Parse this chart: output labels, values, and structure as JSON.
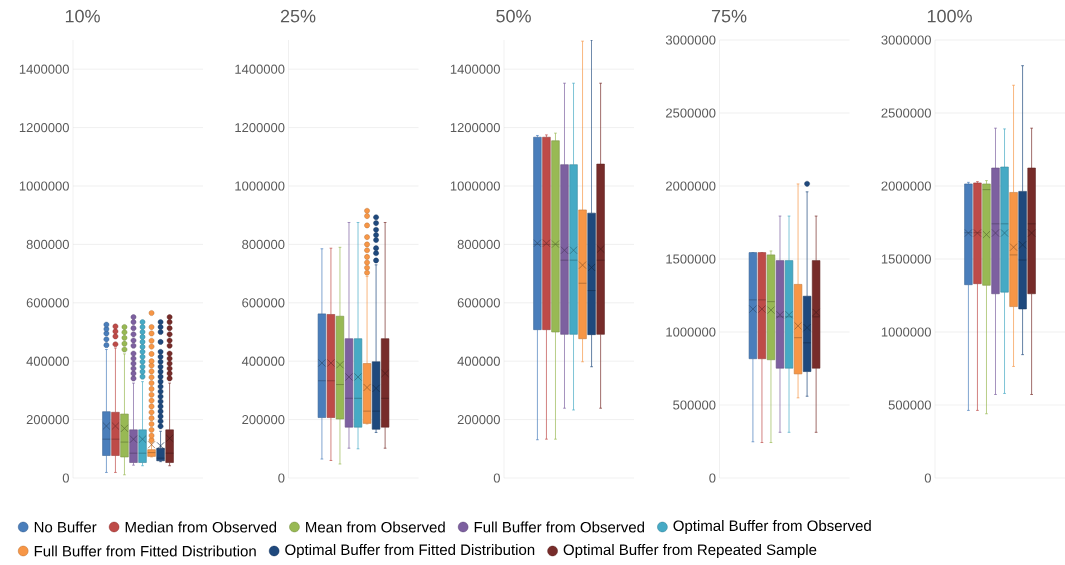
{
  "chart_data": [
    {
      "type": "box",
      "title": "10%",
      "categories": [
        null
      ],
      "ylim": [
        0,
        1500000
      ],
      "yticks": [
        0,
        200000,
        400000,
        600000,
        800000,
        1000000,
        1200000,
        1400000
      ],
      "grid": "y",
      "legend": "bottom",
      "series": [
        {
          "name": "No Buffer",
          "color": "#4a7ebb",
          "boxes": [
            {
              "low": 19000,
              "q1": 77000,
              "median": 133000,
              "q3": 227000,
              "high": 440000,
              "mean": 178000,
              "outliers": [
                455000,
                475000,
                495000,
                510000,
                525000
              ]
            }
          ]
        },
        {
          "name": "Median from Observed",
          "color": "#be4b48",
          "boxes": [
            {
              "low": 19000,
              "q1": 77000,
              "median": 133000,
              "q3": 225000,
              "high": 445000,
              "mean": 178000,
              "outliers": [
                458000,
                485000,
                502000,
                519000
              ]
            }
          ]
        },
        {
          "name": "Mean from Observed",
          "color": "#98b954",
          "boxes": [
            {
              "low": 11000,
              "q1": 72000,
              "median": 123000,
              "q3": 219000,
              "high": 425000,
              "mean": 170000,
              "outliers": [
                440000,
                460000,
                480000,
                499000,
                517000
              ]
            }
          ]
        },
        {
          "name": "Full Buffer from Observed",
          "color": "#7d60a0",
          "boxes": [
            {
              "low": 44000,
              "q1": 53000,
              "median": 85000,
              "q3": 165000,
              "high": 325000,
              "mean": 133000,
              "outliers": [
                341000,
                358000,
                375000,
                392000,
                409000,
                426000,
                453000,
                471000,
                492000,
                513000,
                534000,
                551000
              ]
            }
          ]
        },
        {
          "name": "Optimal Buffer from Observed",
          "color": "#46aac5",
          "boxes": [
            {
              "low": 42000,
              "q1": 53000,
              "median": 85000,
              "q3": 165000,
              "high": 330000,
              "mean": 133000,
              "outliers": [
                347000,
                364000,
                381000,
                398000,
                415000,
                432000,
                449000,
                466000,
                483000,
                500000,
                517000,
                534000
              ]
            }
          ]
        },
        {
          "name": "Full Buffer from Fitted Distribution",
          "color": "#f79646",
          "boxes": [
            {
              "low": 72000,
              "q1": 74000,
              "median": 87000,
              "q3": 97000,
              "high": 120000,
              "mean": 114000,
              "outliers": [
                130000,
                145000,
                165000,
                185000,
                205000,
                225000,
                245000,
                265000,
                285000,
                305000,
                325000,
                345000,
                365000,
                385000,
                400000,
                425000,
                450000,
                470000,
                495000,
                517000,
                565000
              ]
            }
          ]
        },
        {
          "name": "Optimal Buffer from Fitted Distribution",
          "color": "#1f497d",
          "boxes": [
            {
              "low": 56000,
              "q1": 59000,
              "median": 68000,
              "q3": 102000,
              "high": 160000,
              "mean": 110000,
              "outliers": [
                177000,
                194000,
                211000,
                228000,
                245000,
                262000,
                279000,
                296000,
                313000,
                330000,
                347000,
                364000,
                381000,
                398000,
                415000,
                432000,
                466000,
                500000,
                517000,
                534000
              ]
            }
          ]
        },
        {
          "name": "Optimal Buffer from Repeated Sample",
          "color": "#772c2a",
          "boxes": [
            {
              "low": 42000,
              "q1": 53000,
              "median": 85000,
              "q3": 165000,
              "high": 325000,
              "mean": 136000,
              "outliers": [
                341000,
                358000,
                375000,
                392000,
                409000,
                426000,
                453000,
                471000,
                492000,
                513000,
                534000,
                551000
              ]
            }
          ]
        }
      ]
    },
    {
      "type": "box",
      "title": "25%",
      "categories": [
        null
      ],
      "ylim": [
        0,
        1500000
      ],
      "yticks": [
        0,
        200000,
        400000,
        600000,
        800000,
        1000000,
        1200000,
        1400000
      ],
      "grid": "y",
      "series": [
        {
          "color": "#4a7ebb",
          "boxes": [
            {
              "low": 65000,
              "q1": 207000,
              "median": 333000,
              "q3": 562000,
              "high": 785000,
              "mean": 394000
            }
          ]
        },
        {
          "color": "#be4b48",
          "boxes": [
            {
              "low": 60000,
              "q1": 207000,
              "median": 333000,
              "q3": 560000,
              "high": 787000,
              "mean": 394000
            }
          ]
        },
        {
          "color": "#98b954",
          "boxes": [
            {
              "low": 48000,
              "q1": 202000,
              "median": 320000,
              "q3": 554000,
              "high": 790000,
              "mean": 388000
            }
          ]
        },
        {
          "color": "#7d60a0",
          "boxes": [
            {
              "low": 102000,
              "q1": 174000,
              "median": 273000,
              "q3": 477000,
              "high": 875000,
              "mean": 346000
            }
          ]
        },
        {
          "color": "#46aac5",
          "boxes": [
            {
              "low": 100000,
              "q1": 174000,
              "median": 273000,
              "q3": 477000,
              "high": 875000,
              "mean": 346000
            }
          ]
        },
        {
          "color": "#f79646",
          "boxes": [
            {
              "low": 185000,
              "q1": 187000,
              "median": 229000,
              "q3": 392000,
              "high": 690000,
              "mean": 310000,
              "outliers": [
                703000,
                720000,
                738000,
                757000,
                780000,
                800000,
                825000,
                865000,
                897000,
                915000
              ]
            }
          ]
        },
        {
          "color": "#1f497d",
          "boxes": [
            {
              "low": 156000,
              "q1": 167000,
              "median": 229000,
              "q3": 398000,
              "high": 730000,
              "mean": 307000,
              "outliers": [
                745000,
                770000,
                787000,
                815000,
                832000,
                850000,
                873000,
                893000
              ]
            }
          ]
        },
        {
          "color": "#772c2a",
          "boxes": [
            {
              "low": 102000,
              "q1": 174000,
              "median": 273000,
              "q3": 477000,
              "high": 875000,
              "mean": 358000
            }
          ]
        }
      ]
    },
    {
      "type": "box",
      "title": "50%",
      "categories": [
        null
      ],
      "ylim": [
        0,
        1500000
      ],
      "yticks": [
        0,
        200000,
        400000,
        600000,
        800000,
        1000000,
        1200000,
        1400000
      ],
      "grid": "y",
      "series": [
        {
          "color": "#4a7ebb",
          "boxes": [
            {
              "low": 131000,
              "q1": 508000,
              "median": 800000,
              "q3": 1167000,
              "high": 1173000,
              "mean": 804000
            }
          ]
        },
        {
          "color": "#be4b48",
          "boxes": [
            {
              "low": 133000,
              "q1": 508000,
              "median": 800000,
              "q3": 1167000,
              "high": 1175000,
              "mean": 804000
            }
          ]
        },
        {
          "color": "#98b954",
          "boxes": [
            {
              "low": 133000,
              "q1": 500000,
              "median": 800000,
              "q3": 1155000,
              "high": 1181000,
              "mean": 801000
            }
          ]
        },
        {
          "color": "#7d60a0",
          "boxes": [
            {
              "low": 239000,
              "q1": 492000,
              "median": 746000,
              "q3": 1073000,
              "high": 1352000,
              "mean": 780000
            }
          ]
        },
        {
          "color": "#46aac5",
          "boxes": [
            {
              "low": 233000,
              "q1": 492000,
              "median": 746000,
              "q3": 1073000,
              "high": 1352000,
              "mean": 780000
            }
          ]
        },
        {
          "color": "#f79646",
          "boxes": [
            {
              "low": 398000,
              "q1": 477000,
              "median": 667000,
              "q3": 918000,
              "high": 1496000,
              "mean": 729000
            }
          ]
        },
        {
          "color": "#1f497d",
          "boxes": [
            {
              "low": 381000,
              "q1": 491000,
              "median": 642000,
              "q3": 907000,
              "high": 1500000,
              "mean": 721000
            }
          ]
        },
        {
          "color": "#772c2a",
          "boxes": [
            {
              "low": 239000,
              "q1": 492000,
              "median": 746000,
              "q3": 1075000,
              "high": 1352000,
              "mean": 784000
            }
          ]
        }
      ]
    },
    {
      "type": "box",
      "title": "75%",
      "categories": [
        null
      ],
      "ylim": [
        0,
        3000000
      ],
      "yticks": [
        0,
        500000,
        1000000,
        1500000,
        2000000,
        2500000,
        3000000
      ],
      "grid": "y",
      "series": [
        {
          "color": "#4a7ebb",
          "boxes": [
            {
              "low": 248000,
              "q1": 817000,
              "median": 1220000,
              "q3": 1544000,
              "high": 1544000,
              "mean": 1157000
            }
          ]
        },
        {
          "color": "#be4b48",
          "boxes": [
            {
              "low": 243000,
              "q1": 817000,
              "median": 1220000,
              "q3": 1544000,
              "high": 1544000,
              "mean": 1157000
            }
          ]
        },
        {
          "color": "#98b954",
          "boxes": [
            {
              "low": 243000,
              "q1": 810000,
              "median": 1208000,
              "q3": 1528000,
              "high": 1555000,
              "mean": 1150000
            }
          ]
        },
        {
          "color": "#7d60a0",
          "boxes": [
            {
              "low": 313000,
              "q1": 752000,
              "median": 1104000,
              "q3": 1489000,
              "high": 1794000,
              "mean": 1118000
            }
          ]
        },
        {
          "color": "#46aac5",
          "boxes": [
            {
              "low": 313000,
              "q1": 752000,
              "median": 1104000,
              "q3": 1489000,
              "high": 1794000,
              "mean": 1118000
            }
          ]
        },
        {
          "color": "#f79646",
          "boxes": [
            {
              "low": 549000,
              "q1": 713000,
              "median": 961000,
              "q3": 1326000,
              "high": 2014000,
              "mean": 1042000
            }
          ]
        },
        {
          "color": "#1f497d",
          "boxes": [
            {
              "low": 560000,
              "q1": 729000,
              "median": 926000,
              "q3": 1245000,
              "high": 1960000,
              "mean": 1030000,
              "outliers": [
                2015000
              ]
            }
          ]
        },
        {
          "color": "#772c2a",
          "boxes": [
            {
              "low": 313000,
              "q1": 752000,
              "median": 1104000,
              "q3": 1489000,
              "high": 1794000,
              "mean": 1134000
            }
          ]
        }
      ]
    },
    {
      "type": "box",
      "title": "100%",
      "categories": [
        null
      ],
      "ylim": [
        0,
        3000000
      ],
      "yticks": [
        0,
        500000,
        1000000,
        1500000,
        2000000,
        2500000,
        3000000
      ],
      "grid": "y",
      "series": [
        {
          "color": "#4a7ebb",
          "boxes": [
            {
              "low": 463000,
              "q1": 1324000,
              "median": 1680000,
              "q3": 2014000,
              "high": 2025000,
              "mean": 1678000
            }
          ]
        },
        {
          "color": "#be4b48",
          "boxes": [
            {
              "low": 463000,
              "q1": 1331000,
              "median": 1680000,
              "q3": 2021000,
              "high": 2030000,
              "mean": 1678000
            }
          ]
        },
        {
          "color": "#98b954",
          "boxes": [
            {
              "low": 440000,
              "q1": 1320000,
              "median": 1975000,
              "q3": 2014000,
              "high": 2037000,
              "mean": 1667000
            }
          ]
        },
        {
          "color": "#7d60a0",
          "boxes": [
            {
              "low": 572000,
              "q1": 1262000,
              "median": 1741000,
              "q3": 2123000,
              "high": 2396000,
              "mean": 1678000
            }
          ]
        },
        {
          "color": "#46aac5",
          "boxes": [
            {
              "low": 579000,
              "q1": 1273000,
              "median": 1741000,
              "q3": 2130000,
              "high": 2391000,
              "mean": 1678000
            }
          ]
        },
        {
          "color": "#f79646",
          "boxes": [
            {
              "low": 764000,
              "q1": 1174000,
              "median": 1528000,
              "q3": 1956000,
              "high": 2690000,
              "mean": 1581000
            }
          ]
        },
        {
          "color": "#1f497d",
          "boxes": [
            {
              "low": 845000,
              "q1": 1158000,
              "median": 1493000,
              "q3": 1963000,
              "high": 2824000,
              "mean": 1597000
            }
          ]
        },
        {
          "color": "#772c2a",
          "boxes": [
            {
              "low": 572000,
              "q1": 1262000,
              "median": 1741000,
              "q3": 2123000,
              "high": 2396000,
              "mean": 1678000
            }
          ]
        }
      ]
    }
  ]
}
